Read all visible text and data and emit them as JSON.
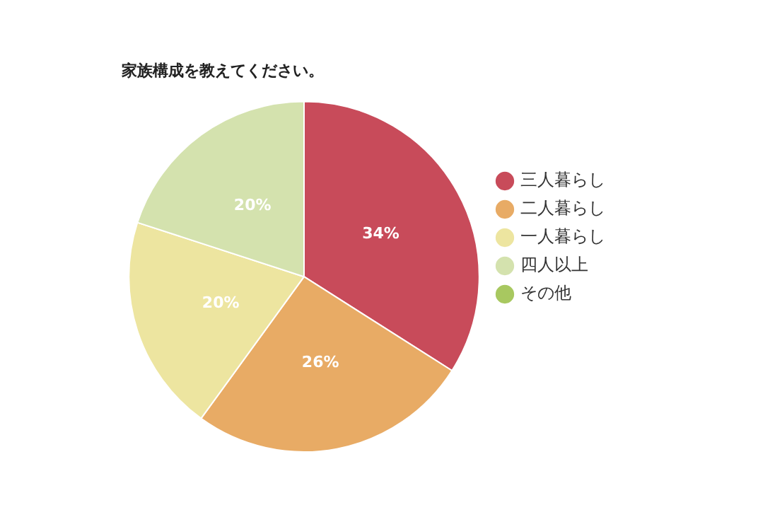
{
  "chart_data": {
    "type": "pie",
    "title": "家族構成を教えてください。",
    "categories": [
      "三人暮らし",
      "二人暮らし",
      "一人暮らし",
      "四人以上",
      "その他"
    ],
    "values": [
      34,
      26,
      20,
      20,
      0
    ],
    "colors": [
      "#c84b5a",
      "#e8ab65",
      "#ede5a0",
      "#d4e2ae",
      "#a8c860"
    ],
    "value_labels": [
      "34%",
      "26%",
      "20%",
      "20%",
      null
    ],
    "legend": "right"
  }
}
